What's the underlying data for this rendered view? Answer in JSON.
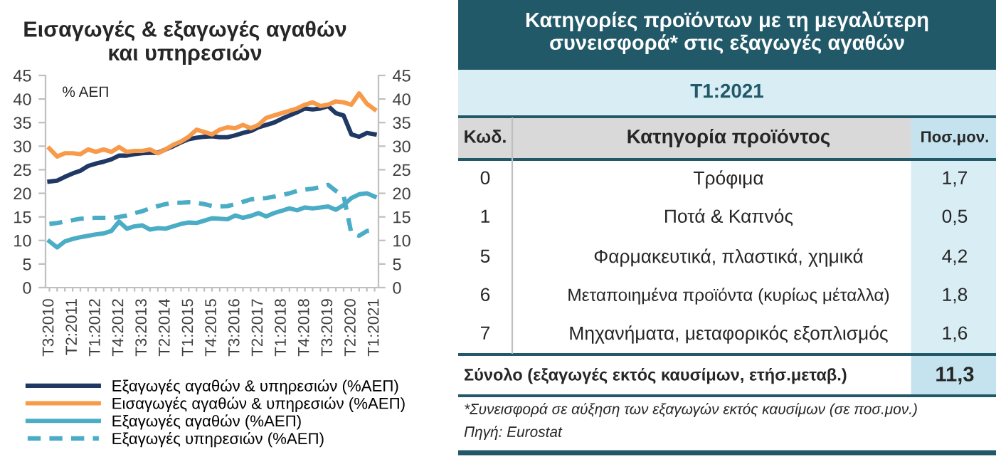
{
  "chart_data": [
    {
      "type": "line",
      "title": "Εισαγωγές & εξαγωγές αγαθών\nκαι υπηρεσιών",
      "categories": [
        "Τ3:2010",
        null,
        null,
        "Τ2:2011",
        null,
        null,
        "Τ1:2012",
        null,
        null,
        "Τ4:2012",
        null,
        null,
        "Τ3:2013",
        null,
        null,
        "Τ2:2014",
        null,
        null,
        "Τ1:2015",
        null,
        null,
        "Τ4:2015",
        null,
        null,
        "Τ3:2016",
        null,
        null,
        "Τ2:2017",
        null,
        null,
        "Τ1:2018",
        null,
        null,
        "Τ4:2018",
        null,
        null,
        "Τ3:2019",
        null,
        null,
        "Τ2:2020",
        null,
        null,
        "Τ1:2021"
      ],
      "series": [
        {
          "name": "Εξαγωγές αγαθών & υπηρεσιών (%ΑΕΠ)",
          "color": "#1f3864",
          "values": [
            22.5,
            22.7,
            23.5,
            24.2,
            24.8,
            25.8,
            26.3,
            26.7,
            27.2,
            28.0,
            28.0,
            28.3,
            28.5,
            28.6,
            28.6,
            29.3,
            30.0,
            30.8,
            31.5,
            31.8,
            32.0,
            32.1,
            31.9,
            31.9,
            32.3,
            32.8,
            33.2,
            34.0,
            34.5,
            35.0,
            35.8,
            36.5,
            37.2,
            38.0,
            37.8,
            38.0,
            38.5,
            37.0,
            36.5,
            32.5,
            32.0,
            32.8,
            32.5
          ]
        },
        {
          "name": "Εισαγωγές αγαθών & υπηρεσιών (%ΑΕΠ)",
          "color": "#f79a4a",
          "values": [
            29.5,
            27.8,
            28.5,
            28.5,
            28.3,
            29.3,
            28.8,
            29.3,
            28.8,
            29.8,
            28.8,
            29.0,
            29.0,
            29.3,
            28.5,
            29.3,
            30.3,
            31.0,
            32.0,
            33.5,
            33.0,
            32.5,
            33.5,
            34.0,
            33.8,
            34.5,
            33.8,
            34.5,
            36.0,
            36.5,
            37.0,
            37.5,
            38.0,
            38.8,
            39.3,
            38.5,
            38.8,
            39.5,
            39.3,
            38.8,
            41.2,
            39.0,
            37.8
          ]
        },
        {
          "name": "Εξαγωγές αγαθών (%ΑΕΠ)",
          "color": "#4bacc6",
          "values": [
            9.8,
            8.5,
            9.8,
            10.3,
            10.7,
            11.0,
            11.3,
            11.5,
            12.0,
            14.0,
            12.5,
            13.0,
            13.2,
            12.3,
            12.6,
            12.5,
            13.0,
            13.5,
            13.8,
            13.7,
            14.2,
            14.7,
            14.6,
            14.5,
            15.3,
            14.8,
            15.2,
            15.8,
            15.1,
            15.8,
            16.3,
            16.8,
            16.4,
            17.0,
            16.8,
            17.0,
            17.2,
            16.5,
            17.5,
            19.0,
            19.8,
            20.0,
            19.3
          ]
        },
        {
          "name": "Εξαγωγές υπηρεσιών (%ΑΕΠ)",
          "color": "#4bacc6",
          "line_style": "dashed",
          "values": [
            13.5,
            13.7,
            14.0,
            14.3,
            14.6,
            14.7,
            14.8,
            14.8,
            14.7,
            15.0,
            15.3,
            15.8,
            16.2,
            16.8,
            17.3,
            17.7,
            18.0,
            18.0,
            18.1,
            18.0,
            17.7,
            17.3,
            17.2,
            17.3,
            17.7,
            18.2,
            18.7,
            18.9,
            19.0,
            19.3,
            19.6,
            20.0,
            20.5,
            20.8,
            21.0,
            21.3,
            21.8,
            20.5,
            19.5,
            11.5,
            11.0,
            12.0,
            12.3
          ]
        }
      ],
      "ylim": [
        0,
        45
      ],
      "yticks": [
        0,
        5,
        10,
        15,
        20,
        25,
        30,
        35,
        40,
        45
      ],
      "y2lim": [
        0,
        45
      ],
      "y2ticks": [
        0,
        5,
        10,
        15,
        20,
        25,
        30,
        35,
        40,
        45
      ],
      "annotations": [
        "% ΑΕΠ"
      ],
      "legend": "bottom"
    },
    {
      "type": "other",
      "title": "Κατηγορίες προϊόντων με τη μεγαλύτερη\nσυνεισφορά* στις εξαγωγές αγαθών",
      "subtitle": "Τ1:2021",
      "annotations": [
        "Κωδ.",
        "Κατηγορία προϊόντος",
        "Ποσ.μον.",
        "0",
        "Τρόφιμα",
        "1,7",
        "1",
        "Ποτά & Καπνός",
        "0,5",
        "5",
        "Φαρμακευτικά, πλαστικά, χημικά",
        "4,2",
        "6",
        "Μεταποιημένα προϊόντα (κυρίως μέταλλα)",
        "1,8",
        "7",
        "Μηχανήματα, μεταφορικός εξοπλισμός",
        "1,6",
        "Σύνολο (εξαγωγές εκτός καυσίμων, ετήσ.μεταβ.)",
        "11,3",
        "*Συνεισφορά σε αύξηση των εξαγωγών εκτός καυσίμων (σε ποσ.μον.)",
        "Πηγή: Eurostat"
      ]
    }
  ]
}
